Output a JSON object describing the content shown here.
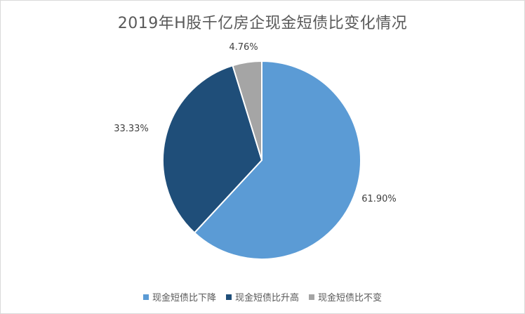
{
  "chart_data": {
    "type": "pie",
    "title": "2019年H股千亿房企现金短债比变化情况",
    "slices": [
      {
        "label": "现金短债比下降",
        "value": 61.9,
        "display": "61.90%",
        "color": "#5b9bd5"
      },
      {
        "label": "现金短债比升高",
        "value": 33.33,
        "display": "33.33%",
        "color": "#1f4e79"
      },
      {
        "label": "现金短债比不变",
        "value": 4.76,
        "display": "4.76%",
        "color": "#a5a5a5"
      }
    ],
    "start_angle": "12 o'clock",
    "direction": "clockwise",
    "legend_position": "bottom"
  }
}
